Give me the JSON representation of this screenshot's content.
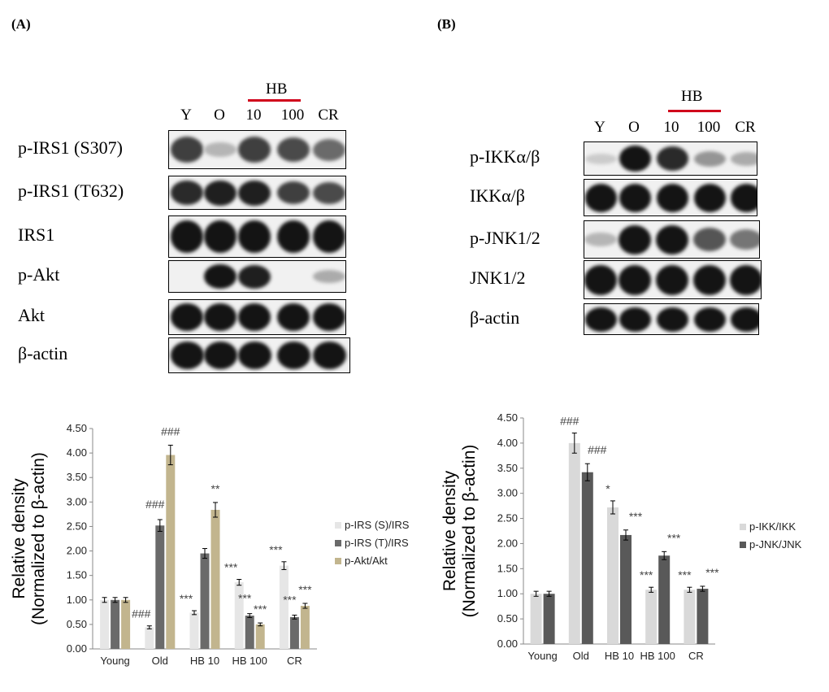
{
  "panels": {
    "a": {
      "label": "(A)",
      "lanes": [
        "Y",
        "O",
        "10",
        "100",
        "CR"
      ],
      "treatment": "HB",
      "blots": [
        {
          "label": "p-IRS1 (S307)",
          "intensity": [
            0.8,
            0.25,
            0.8,
            0.75,
            0.6
          ]
        },
        {
          "label": "p-IRS1 (T632)",
          "intensity": [
            0.9,
            0.95,
            0.95,
            0.8,
            0.75
          ]
        },
        {
          "label": "IRS1",
          "intensity": [
            1,
            1,
            1,
            1,
            1
          ]
        },
        {
          "label": "p-Akt",
          "intensity": [
            0,
            1,
            0.95,
            0,
            0.3
          ]
        },
        {
          "label": "Akt",
          "intensity": [
            1,
            1,
            1,
            1,
            1
          ]
        },
        {
          "label": "β-actin",
          "intensity": [
            1,
            1,
            1,
            1,
            1
          ]
        }
      ]
    },
    "b": {
      "label": "(B)",
      "lanes": [
        "Y",
        "O",
        "10",
        "100",
        "CR"
      ],
      "treatment": "HB",
      "blots": [
        {
          "label": "p-IKKα/β",
          "intensity": [
            0.15,
            1,
            0.9,
            0.4,
            0.3
          ]
        },
        {
          "label": "IKKα/β",
          "intensity": [
            1,
            1,
            1,
            1,
            1
          ]
        },
        {
          "label": "p-JNK1/2",
          "intensity": [
            0.25,
            1,
            1,
            0.7,
            0.55
          ]
        },
        {
          "label": "JNK1/2",
          "intensity": [
            1,
            1,
            1,
            1,
            1
          ]
        },
        {
          "label": "β-actin",
          "intensity": [
            1,
            1,
            1,
            1,
            1
          ]
        }
      ]
    }
  },
  "chart_data": [
    {
      "type": "bar",
      "categories": [
        "Young",
        "Old",
        "HB 10",
        "HB 100",
        "CR"
      ],
      "ylabel": "Relative density",
      "ylabel2": "(Normalized to β-actin)",
      "ylim": [
        0,
        4.5
      ],
      "yticks": [
        "0.00",
        "0.50",
        "1.00",
        "1.50",
        "2.00",
        "2.50",
        "3.00",
        "3.50",
        "4.00",
        "4.50"
      ],
      "legend_position": "right",
      "series": [
        {
          "name": "p-IRS (S)/IRS",
          "color": "#e6e6e6",
          "values": [
            1.0,
            0.44,
            0.74,
            1.36,
            1.7
          ],
          "errors": [
            0.05,
            0.03,
            0.04,
            0.06,
            0.08
          ],
          "annotations": [
            "",
            "###",
            "***",
            "***",
            "***"
          ]
        },
        {
          "name": "p-IRS (T)/IRS",
          "color": "#6a6a6a",
          "values": [
            1.0,
            2.52,
            1.95,
            0.68,
            0.65
          ],
          "errors": [
            0.05,
            0.12,
            0.1,
            0.04,
            0.04
          ],
          "annotations": [
            "",
            "###",
            "",
            "***",
            "***"
          ]
        },
        {
          "name": "p-Akt/Akt",
          "color": "#c2b58e",
          "values": [
            1.0,
            3.96,
            2.84,
            0.5,
            0.88
          ],
          "errors": [
            0.05,
            0.2,
            0.15,
            0.03,
            0.05
          ],
          "annotations": [
            "",
            "###",
            "**",
            "***",
            "***"
          ]
        }
      ]
    },
    {
      "type": "bar",
      "categories": [
        "Young",
        "Old",
        "HB 10",
        "HB 100",
        "CR"
      ],
      "ylabel": "Relative density",
      "ylabel2": "(Normalized to β-actin)",
      "ylim": [
        0,
        4.5
      ],
      "yticks": [
        "0.00",
        "0.50",
        "1.00",
        "1.50",
        "2.00",
        "2.50",
        "3.00",
        "3.50",
        "4.00",
        "4.50"
      ],
      "legend_position": "right",
      "series": [
        {
          "name": "p-IKK/IKK",
          "color": "#d9d9d9",
          "values": [
            1.0,
            4.0,
            2.72,
            1.08,
            1.08
          ],
          "errors": [
            0.05,
            0.2,
            0.13,
            0.05,
            0.05
          ],
          "annotations": [
            "",
            "###",
            "*",
            "***",
            "***"
          ]
        },
        {
          "name": "p-JNK/JNK",
          "color": "#595959",
          "values": [
            1.0,
            3.42,
            2.17,
            1.76,
            1.1
          ],
          "errors": [
            0.05,
            0.17,
            0.1,
            0.08,
            0.05
          ],
          "annotations": [
            "",
            "###",
            "***",
            "***",
            "***"
          ]
        }
      ]
    }
  ]
}
